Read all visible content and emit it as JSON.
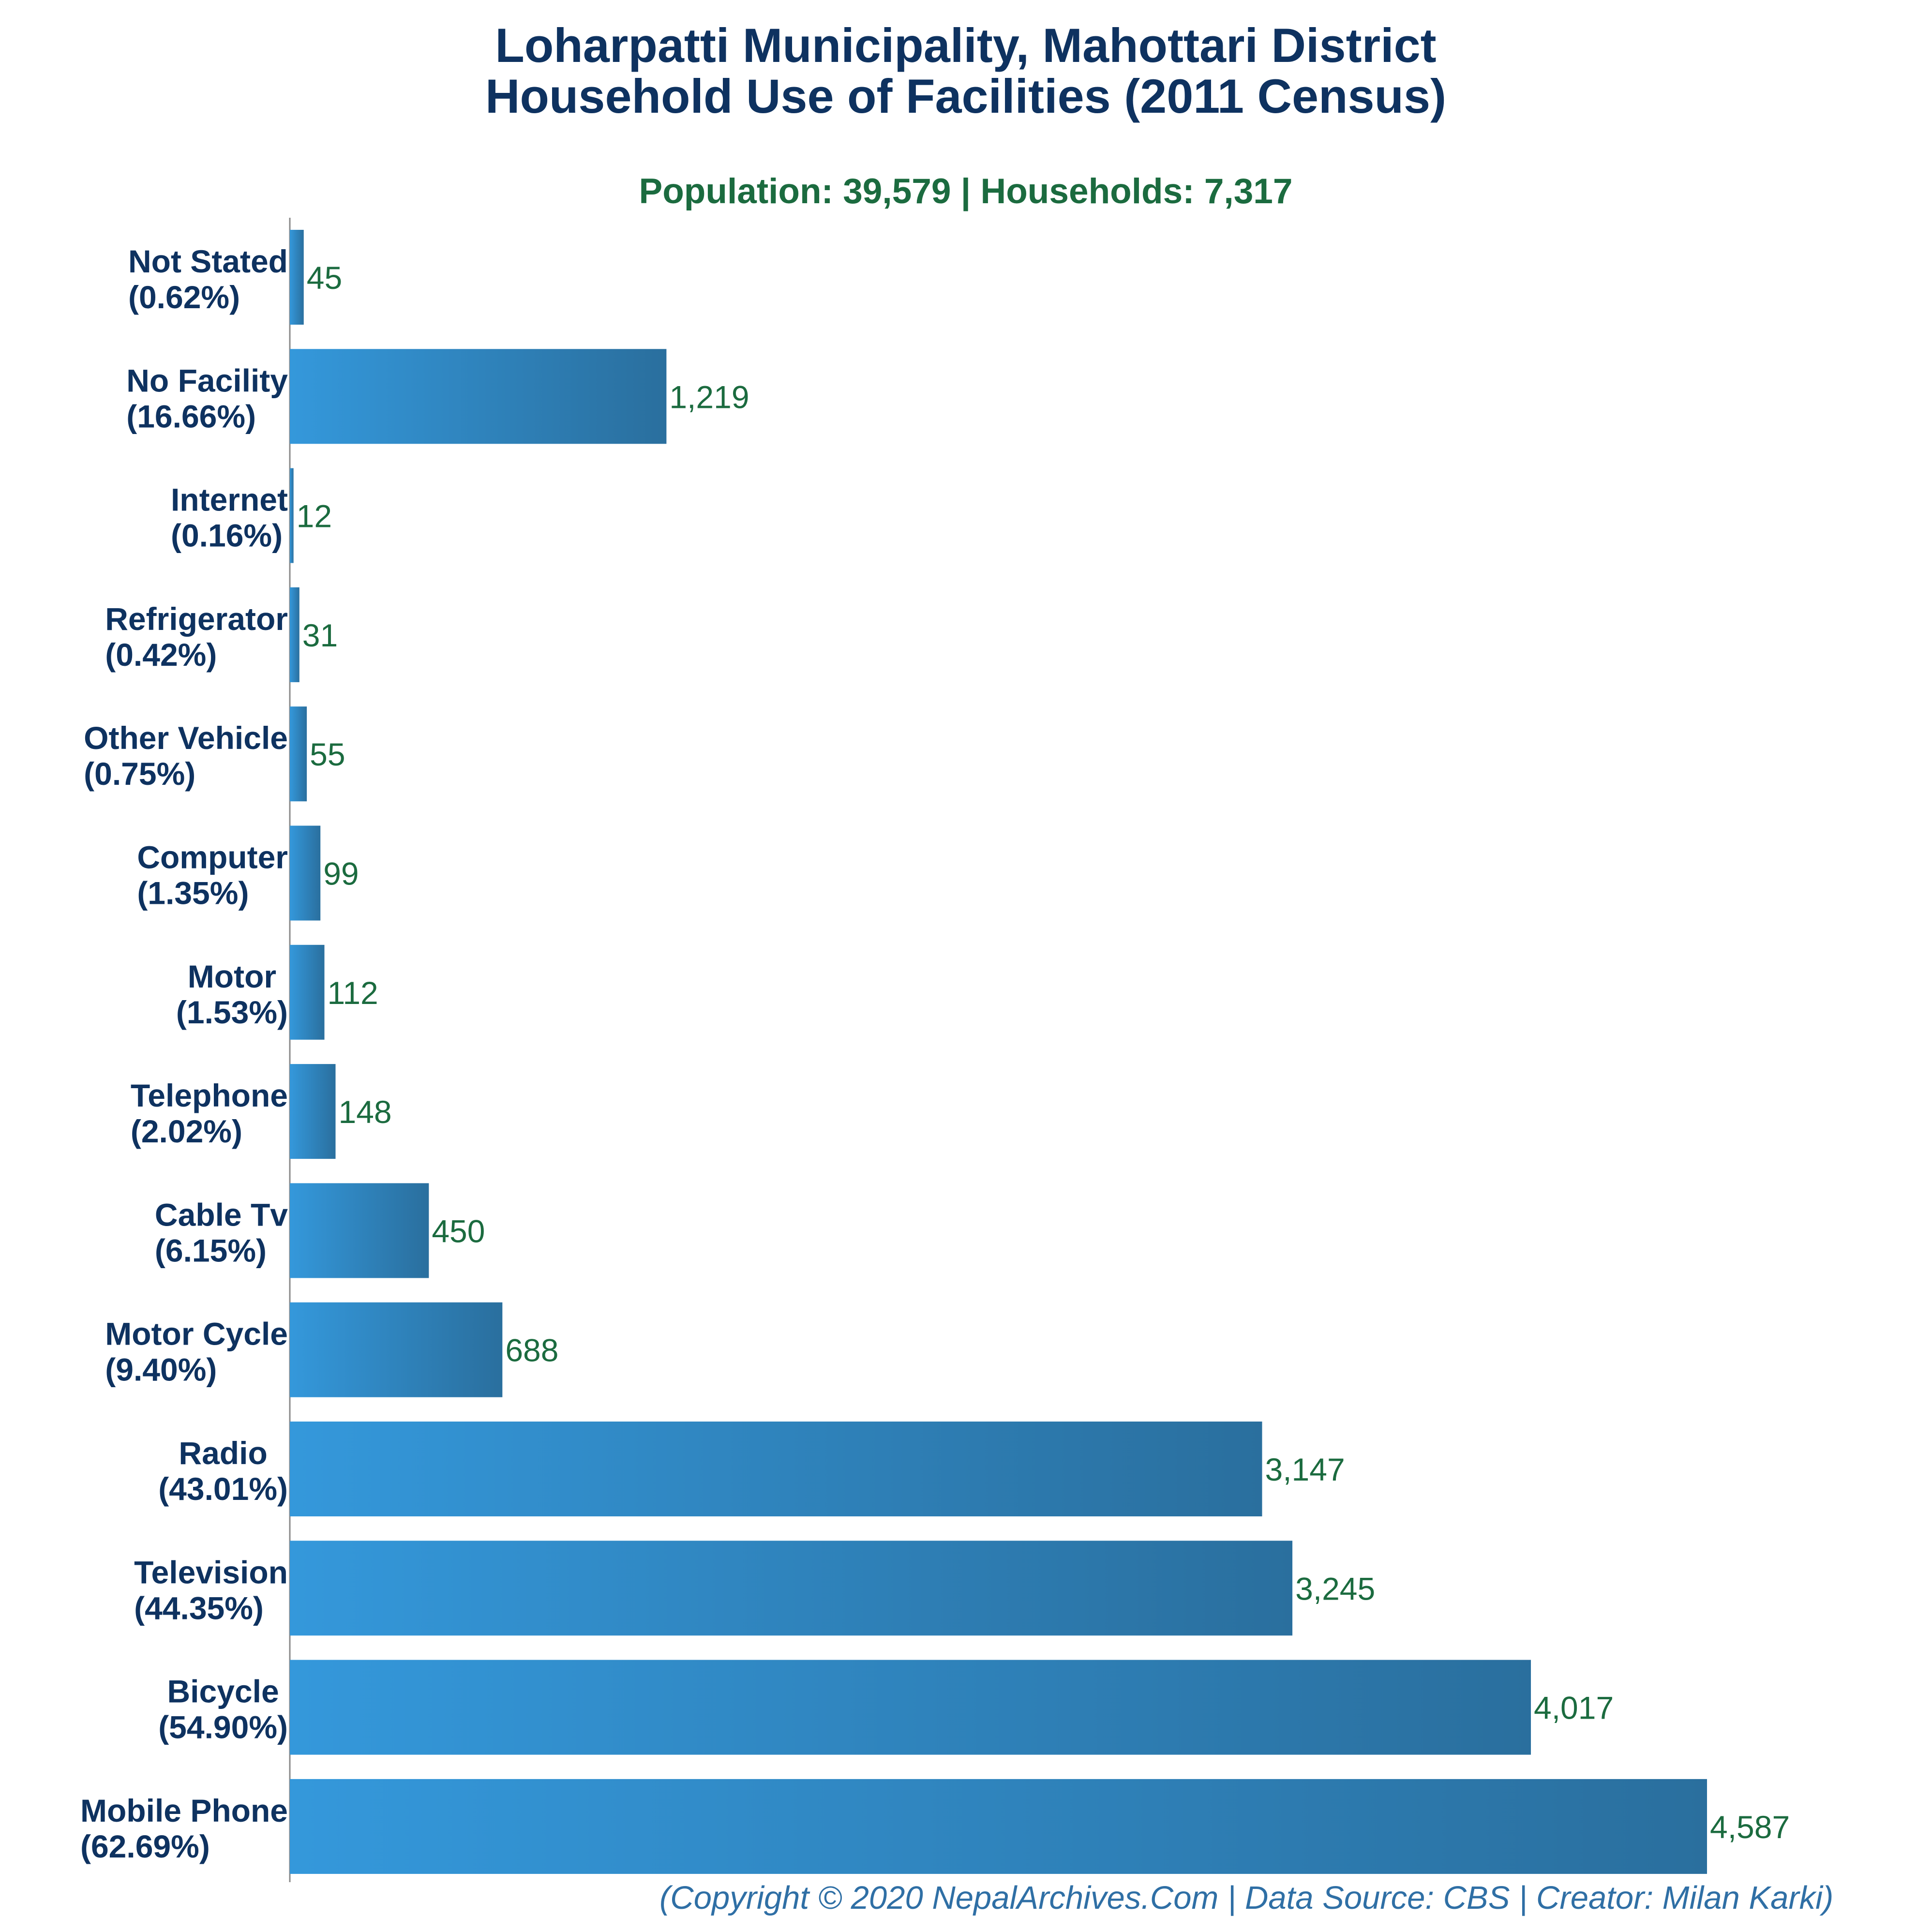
{
  "chart_data": {
    "type": "bar",
    "orientation": "horizontal",
    "title_line1": "Loharpatti Municipality, Mahottari District",
    "title_line2": "Household Use of Facilities (2011 Census)",
    "subtitle": "Population: 39,579 | Households: 7,317",
    "credit": "(Copyright © 2020 NepalArchives.Com | Data Source: CBS | Creator: Milan Karki)",
    "xlim": [
      0,
      4587
    ],
    "grid": false,
    "categories": [
      "Not Stated",
      "No Facility",
      "Internet",
      "Refrigerator",
      "Other Vehicle",
      "Computer",
      "Motor",
      "Telephone",
      "Cable Tv",
      "Motor Cycle",
      "Radio",
      "Television",
      "Bicycle",
      "Mobile Phone"
    ],
    "percent_labels": [
      "(0.62%)",
      "(16.66%)",
      "(0.16%)",
      "(0.42%)",
      "(0.75%)",
      "(1.35%)",
      "(1.53%)",
      "(2.02%)",
      "(6.15%)",
      "(9.40%)",
      "(43.01%)",
      "(44.35%)",
      "(54.90%)",
      "(62.69%)"
    ],
    "values": [
      45,
      1219,
      12,
      31,
      55,
      99,
      112,
      148,
      450,
      688,
      3147,
      3245,
      4017,
      4587
    ],
    "value_labels": [
      "45",
      "1,219",
      "12",
      "31",
      "55",
      "99",
      "112",
      "148",
      "450",
      "688",
      "3,147",
      "3,245",
      "4,017",
      "4,587"
    ]
  },
  "colors": {
    "bar_start": "#3498db",
    "bar_end": "#2a6f9e",
    "title": "#0e3260",
    "subtitle": "#1b6b3f",
    "value_text": "#1b6b3f",
    "credit": "#2f6fa5",
    "axis": "#8a8a8a"
  }
}
